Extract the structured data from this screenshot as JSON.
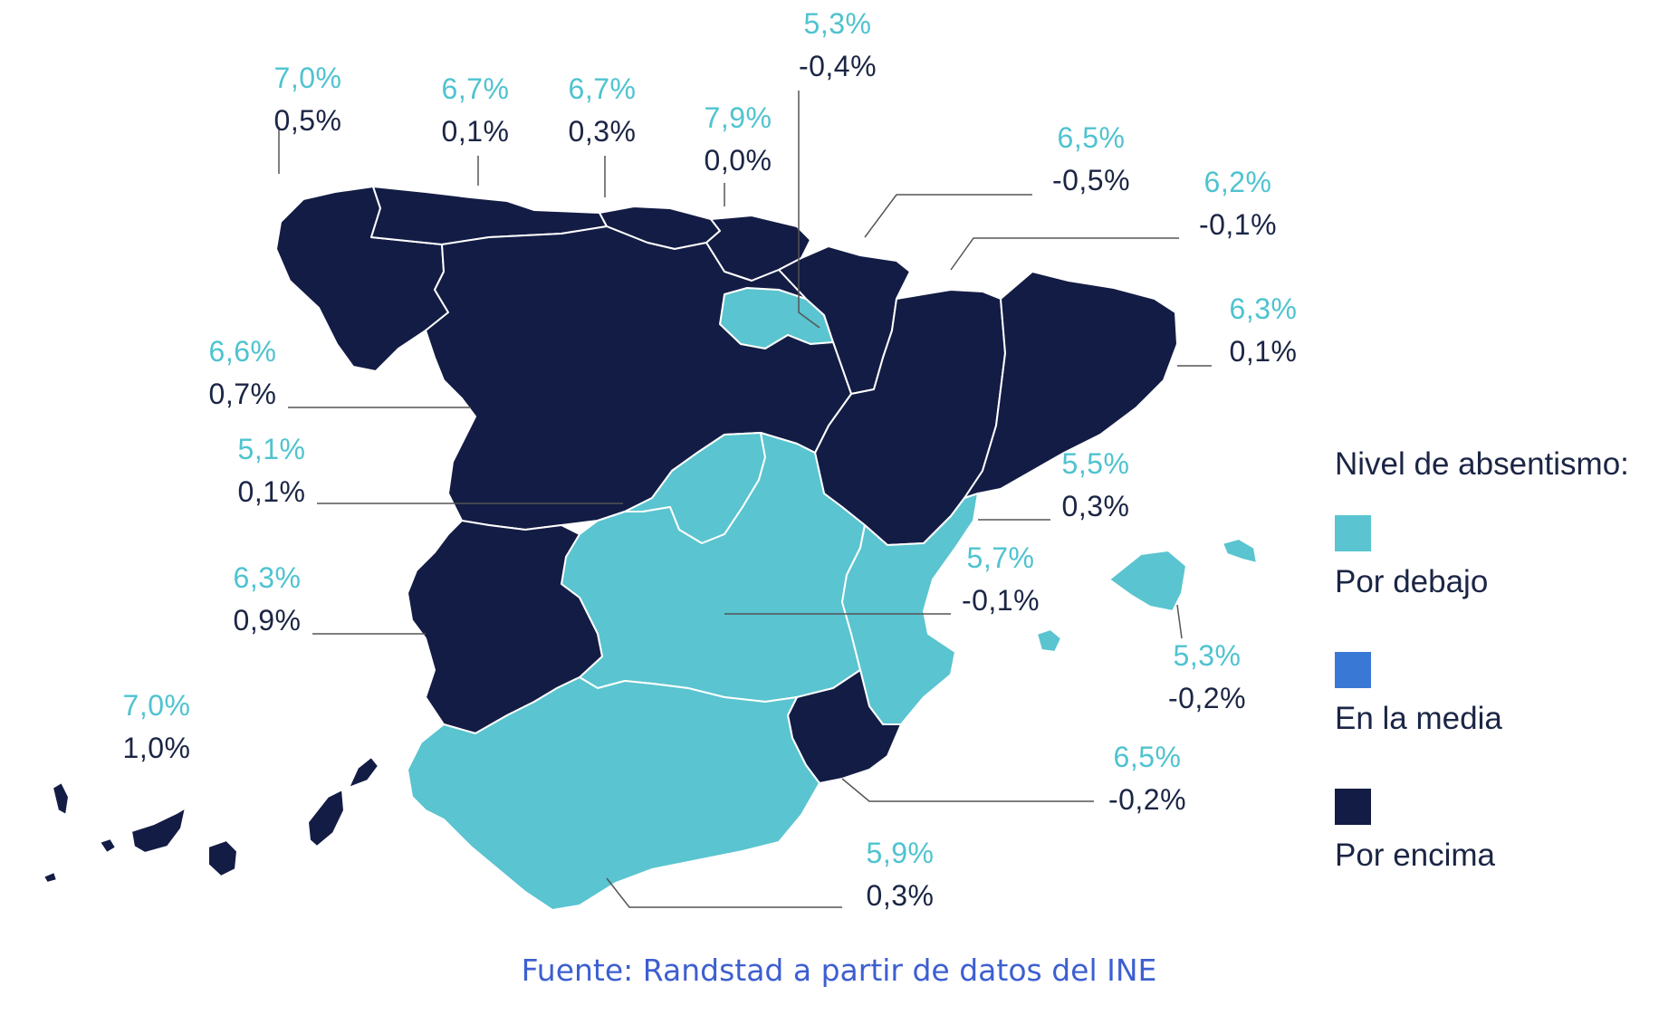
{
  "colors": {
    "below": "#5ac4d0",
    "average": "#3a78d6",
    "above": "#131c44",
    "rate_text": "#4fc3d0",
    "change_text": "#1b2545",
    "leader": "#555555",
    "source_text": "#3d5fd0"
  },
  "regions": [
    {
      "id": "galicia",
      "level": "above",
      "rate": "7,0%",
      "change": "0,5%"
    },
    {
      "id": "asturias",
      "level": "above",
      "rate": "6,7%",
      "change": "0,1%"
    },
    {
      "id": "cantabria",
      "level": "above",
      "rate": "6,7%",
      "change": "0,3%"
    },
    {
      "id": "pais-vasco",
      "level": "above",
      "rate": "7,9%",
      "change": "0,0%"
    },
    {
      "id": "la-rioja",
      "level": "below",
      "rate": "5,3%",
      "change": "-0,4%"
    },
    {
      "id": "navarra",
      "level": "above",
      "rate": "6,5%",
      "change": "-0,5%"
    },
    {
      "id": "aragon",
      "level": "above",
      "rate": "6,2%",
      "change": "-0,1%"
    },
    {
      "id": "cataluna",
      "level": "above",
      "rate": "6,3%",
      "change": "0,1%"
    },
    {
      "id": "castilla-y-leon",
      "level": "above",
      "rate": "6,6%",
      "change": "0,7%"
    },
    {
      "id": "madrid",
      "level": "below",
      "rate": "5,1%",
      "change": "0,1%"
    },
    {
      "id": "comunidad-valenciana",
      "level": "below",
      "rate": "5,5%",
      "change": "0,3%"
    },
    {
      "id": "castilla-la-mancha",
      "level": "below",
      "rate": "5,7%",
      "change": "-0,1%"
    },
    {
      "id": "extremadura",
      "level": "above",
      "rate": "6,3%",
      "change": "0,9%"
    },
    {
      "id": "baleares",
      "level": "below",
      "rate": "5,3%",
      "change": "-0,2%"
    },
    {
      "id": "canarias",
      "level": "above",
      "rate": "7,0%",
      "change": "1,0%"
    },
    {
      "id": "murcia",
      "level": "above",
      "rate": "6,5%",
      "change": "-0,2%"
    },
    {
      "id": "andalucia",
      "level": "below",
      "rate": "5,9%",
      "change": "0,3%"
    }
  ],
  "legend": {
    "title": "Nivel de absentismo:",
    "items": [
      {
        "level": "below",
        "label": "Por debajo"
      },
      {
        "level": "average",
        "label": "En la media"
      },
      {
        "level": "above",
        "label": "Por encima"
      }
    ]
  },
  "source": "Fuente: Randstad a partir de datos del INE"
}
